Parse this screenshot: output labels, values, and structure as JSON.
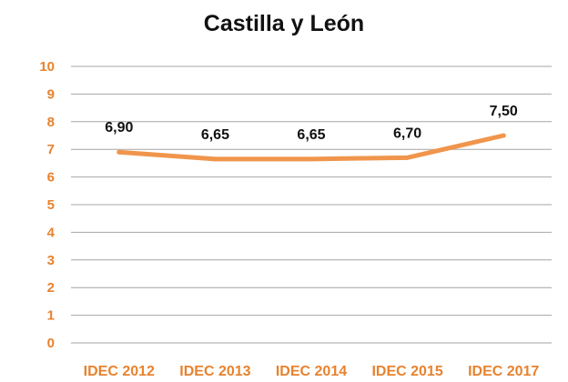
{
  "chart_data": {
    "type": "line",
    "title": "Castilla y León",
    "xlabel": "",
    "ylabel": "",
    "categories": [
      "IDEC 2012",
      "IDEC 2013",
      "IDEC 2014",
      "IDEC 2015",
      "IDEC 2017"
    ],
    "series": [
      {
        "values": [
          6.9,
          6.65,
          6.65,
          6.7,
          7.5
        ],
        "data_labels": [
          "6,90",
          "6,65",
          "6,65",
          "6,70",
          "7,50"
        ]
      }
    ],
    "ylim": [
      0,
      10
    ],
    "yticks": [
      "0",
      "1",
      "2",
      "3",
      "4",
      "5",
      "6",
      "7",
      "8",
      "9",
      "10"
    ],
    "grid": true,
    "legend": "none"
  },
  "colors": {
    "line": "#F0954B",
    "axis_labels": "#E8822E",
    "grid": "#A6A6A6",
    "text": "#111111"
  }
}
